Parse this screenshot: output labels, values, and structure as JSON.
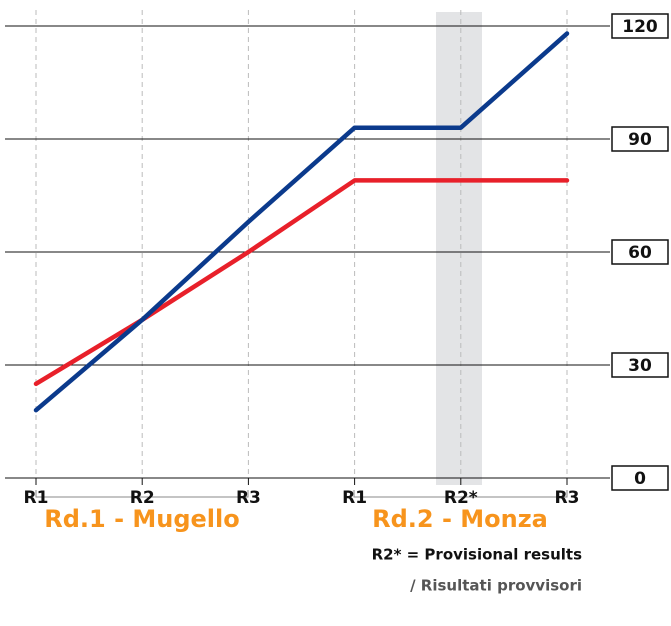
{
  "chart_data": {
    "type": "line",
    "categories": [
      "R1",
      "R2",
      "R3",
      "R1",
      "R2*",
      "R3"
    ],
    "series": [
      {
        "color": "#e8202a",
        "values": [
          25,
          42,
          60,
          79,
          79,
          79
        ]
      },
      {
        "color": "#0b3a8c",
        "values": [
          18,
          42,
          68,
          93,
          93,
          118
        ]
      }
    ],
    "ylim": [
      0,
      120
    ],
    "yticks": [
      0,
      30,
      60,
      90,
      120
    ],
    "grid": true,
    "groups": [
      "Rd.1 - Mugello",
      "Rd.2 - Monza"
    ],
    "note": "R2* = Provisional results",
    "note_translation": "/ Risultati provvisori"
  }
}
